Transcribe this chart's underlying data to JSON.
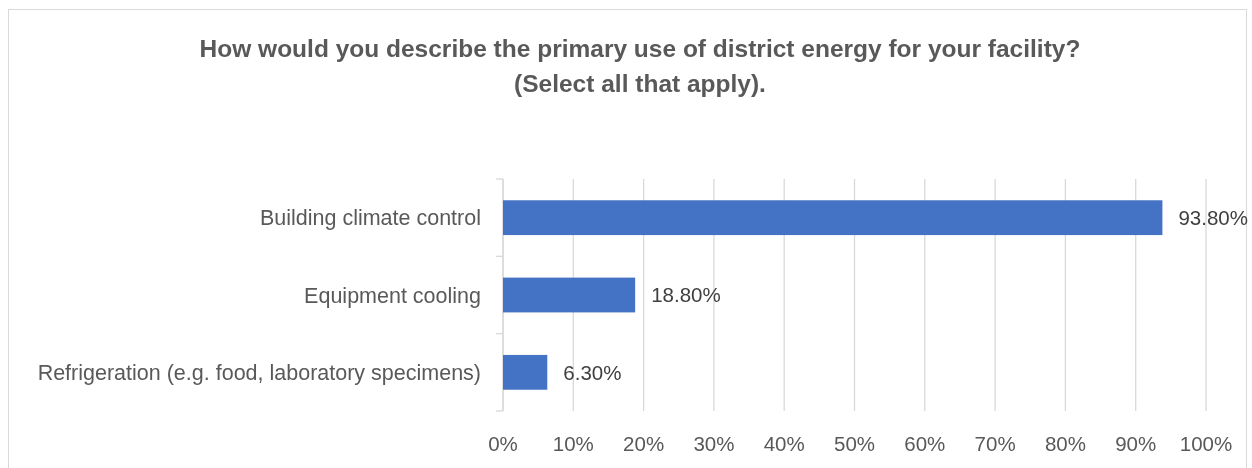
{
  "chart_data": {
    "type": "bar",
    "orientation": "horizontal",
    "title": "How would you describe the primary use of district energy for your facility?\n(Select all that apply).",
    "categories": [
      "Building climate control",
      "Equipment cooling",
      "Refrigeration (e.g. food, laboratory specimens)"
    ],
    "values": [
      93.8,
      18.8,
      6.3
    ],
    "value_labels": [
      "93.80%",
      "18.80%",
      "6.30%"
    ],
    "color": "#4472c4",
    "xlim": [
      0,
      100
    ],
    "xticks": [
      {
        "value": 0,
        "label": "0%"
      },
      {
        "value": 10,
        "label": "10%"
      },
      {
        "value": 20,
        "label": "20%"
      },
      {
        "value": 30,
        "label": "30%"
      },
      {
        "value": 40,
        "label": "40%"
      },
      {
        "value": 50,
        "label": "50%"
      },
      {
        "value": 60,
        "label": "60%"
      },
      {
        "value": 70,
        "label": "70%"
      },
      {
        "value": 80,
        "label": "80%"
      },
      {
        "value": 90,
        "label": "90%"
      },
      {
        "value": 100,
        "label": "100%"
      }
    ],
    "grid": "x"
  }
}
